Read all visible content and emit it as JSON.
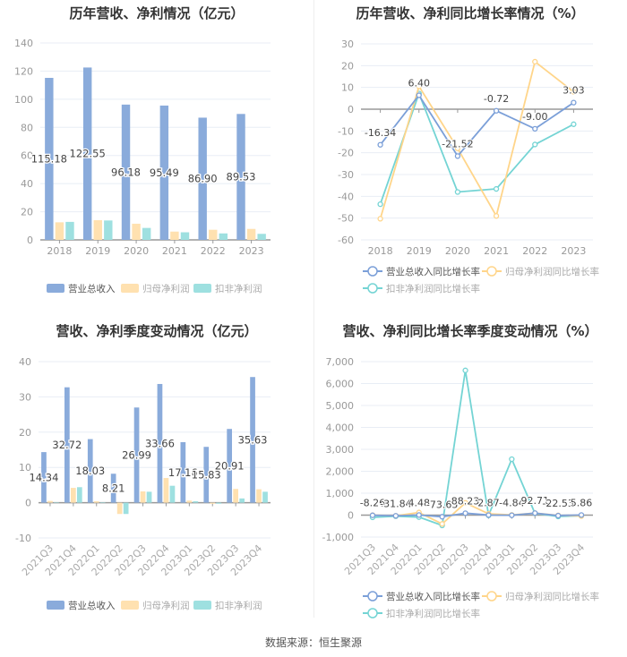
{
  "source": "数据来源：恒生聚源",
  "colors": {
    "revenue": "#8aabdb",
    "net": "#ffe1b0",
    "deducted": "#9ee0e0",
    "revenue_line": "#7b9fd8",
    "net_line": "#ffd58a",
    "deducted_line": "#74d4d4"
  },
  "chart_data": [
    {
      "type": "bar",
      "title": "历年营收、净利情况（亿元）",
      "categories": [
        "2018",
        "2019",
        "2020",
        "2021",
        "2022",
        "2023"
      ],
      "ylim": [
        0,
        140
      ],
      "yticks": [
        0,
        20,
        40,
        60,
        80,
        100,
        120,
        140
      ],
      "grid": true,
      "legend": "bottom",
      "series": [
        {
          "name": "营业总收入",
          "values": [
            115.18,
            122.55,
            96.18,
            95.49,
            86.9,
            89.53
          ],
          "labels": [
            "115.18",
            "122.55",
            "96.18",
            "95.49",
            "86.90",
            "89.53"
          ]
        },
        {
          "name": "归母净利润",
          "values": [
            12.5,
            14.0,
            11.5,
            5.9,
            7.2,
            7.8
          ]
        },
        {
          "name": "扣非净利润",
          "values": [
            12.8,
            13.8,
            8.5,
            5.4,
            4.6,
            4.3
          ]
        }
      ]
    },
    {
      "type": "line",
      "title": "历年营收、净利同比增长率情况（%）",
      "categories": [
        "2018",
        "2019",
        "2020",
        "2021",
        "2022",
        "2023"
      ],
      "ylim": [
        -60,
        30
      ],
      "yticks": [
        -60,
        -50,
        -40,
        -30,
        -20,
        -10,
        0,
        10,
        20,
        30
      ],
      "grid": true,
      "legend": "bottom",
      "series": [
        {
          "name": "营业总收入同比增长率",
          "values": [
            -16.34,
            6.4,
            -21.52,
            -0.72,
            -9.0,
            3.03
          ],
          "labels": [
            "-16.34",
            "6.40",
            "-21.52",
            "-0.72",
            "-9.00",
            "3.03"
          ]
        },
        {
          "name": "归母净利润同比增长率",
          "values": [
            -50.3,
            10.5,
            -18.0,
            -49.0,
            21.8,
            8.0
          ]
        },
        {
          "name": "扣非净利润同比增长率",
          "values": [
            -43.6,
            7.2,
            -38.0,
            -36.6,
            -16.2,
            -6.9
          ]
        }
      ]
    },
    {
      "type": "bar",
      "title": "营收、净利季度变动情况（亿元）",
      "categories": [
        "2021Q3",
        "2021Q4",
        "2022Q1",
        "2022Q2",
        "2022Q3",
        "2022Q4",
        "2023Q1",
        "2023Q2",
        "2023Q3",
        "2023Q4"
      ],
      "ylim": [
        -10,
        40
      ],
      "yticks": [
        -10,
        0,
        10,
        20,
        30,
        40
      ],
      "grid": true,
      "legend": "bottom",
      "series": [
        {
          "name": "营业总收入",
          "values": [
            14.34,
            32.72,
            18.03,
            8.21,
            26.99,
            33.66,
            17.16,
            15.83,
            20.91,
            35.63
          ],
          "labels": [
            "14.34",
            "32.72",
            "18.03",
            "8.21",
            "26.99",
            "33.66",
            "17.16",
            "15.83",
            "20.91",
            "35.63"
          ]
        },
        {
          "name": "归母净利润",
          "values": [
            0.5,
            4.2,
            0.4,
            -3.2,
            3.2,
            7.0,
            0.6,
            -0.3,
            3.9,
            3.8
          ]
        },
        {
          "name": "扣非净利润",
          "values": [
            0.05,
            4.4,
            0.05,
            -3.2,
            3.1,
            4.8,
            0.4,
            -0.3,
            1.2,
            3.1
          ]
        }
      ]
    },
    {
      "type": "line",
      "title": "营收、净利同比增长率季度变动情况（%）",
      "categories": [
        "2021Q3",
        "2021Q4",
        "2022Q1",
        "2022Q2",
        "2022Q3",
        "2022Q4",
        "2023Q1",
        "2023Q2",
        "2023Q3",
        "2023Q4"
      ],
      "ylim": [
        -1000,
        7000
      ],
      "yticks": [
        -1000,
        0,
        1000,
        2000,
        3000,
        4000,
        5000,
        6000,
        7000
      ],
      "ytick_labels": [
        "-1,000",
        "0",
        "1,000",
        "2,000",
        "3,000",
        "4,000",
        "5,000",
        "6,000",
        "7,000"
      ],
      "grid": true,
      "legend": "bottom",
      "series": [
        {
          "name": "营业总收入同比增长率",
          "values": [
            -8.26,
            -31.84,
            4.48,
            -73.65,
            88.23,
            2.87,
            -4.84,
            92.71,
            -22.53,
            5.86
          ],
          "labels": [
            "-8.26",
            "-31.84",
            "4.48",
            "-73.65",
            "88.23",
            "2.87",
            "-4.84",
            "92.71",
            "-22.53",
            "5.86"
          ]
        },
        {
          "name": "归母净利润同比增长率",
          "values": [
            0,
            -30,
            120,
            -400,
            560,
            60,
            10,
            90,
            -10,
            -40
          ]
        },
        {
          "name": "扣非净利润同比增长率",
          "values": [
            -100,
            -50,
            -90,
            -470,
            6600,
            -10,
            2550,
            80,
            -60,
            -30
          ]
        }
      ]
    }
  ]
}
